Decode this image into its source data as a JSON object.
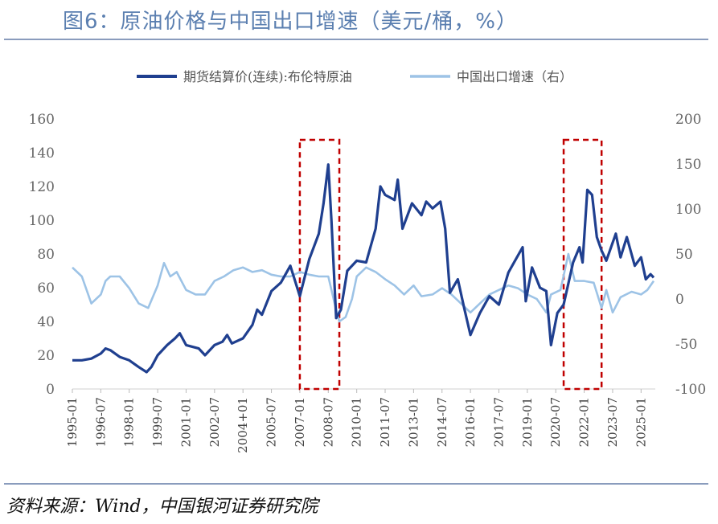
{
  "title": "图6：原油价格与中国出口增速（美元/桶，%）",
  "source": "资料来源：Wind，中国银河证券研究院",
  "chart_data": {
    "type": "line",
    "legend": [
      "期货结算价(连续):布伦特原油",
      "中国出口增速（右）"
    ],
    "legend_placement": "top",
    "x_tick_labels": [
      "1995-01",
      "1996-07",
      "1998-01",
      "1999-07",
      "2001-01",
      "2002-07",
      "2004+01",
      "2005-07",
      "2007-01",
      "2008-07",
      "2010-01",
      "2011-07",
      "2013-01",
      "2014-07",
      "2016-01",
      "2017-07",
      "2019-01",
      "2020-07",
      "2022-01",
      "2023-07",
      "2025-01"
    ],
    "y_left": {
      "ticks": [
        0,
        20,
        40,
        60,
        80,
        100,
        120,
        140,
        160
      ],
      "lim": [
        0,
        160
      ]
    },
    "y_right": {
      "ticks": [
        -100,
        -50,
        0,
        50,
        100,
        150,
        200
      ],
      "lim": [
        -100,
        200
      ]
    },
    "grid": false,
    "series": [
      {
        "name": "期货结算价(连续):布伦特原油",
        "axis": "left",
        "color": "#1f3f8f",
        "points": [
          [
            "1995-01",
            17
          ],
          [
            "1995-07",
            17
          ],
          [
            "1996-01",
            18
          ],
          [
            "1996-07",
            21
          ],
          [
            "1996-10",
            24
          ],
          [
            "1997-01",
            23
          ],
          [
            "1997-07",
            19
          ],
          [
            "1998-01",
            17
          ],
          [
            "1998-07",
            13
          ],
          [
            "1998-12",
            10
          ],
          [
            "1999-03",
            13
          ],
          [
            "1999-07",
            20
          ],
          [
            "2000-01",
            26
          ],
          [
            "2000-06",
            30
          ],
          [
            "2000-09",
            33
          ],
          [
            "2001-01",
            26
          ],
          [
            "2001-09",
            24
          ],
          [
            "2002-01",
            20
          ],
          [
            "2002-07",
            26
          ],
          [
            "2002-12",
            28
          ],
          [
            "2003-03",
            32
          ],
          [
            "2003-06",
            27
          ],
          [
            "2004-01",
            30
          ],
          [
            "2004-07",
            38
          ],
          [
            "2004-10",
            47
          ],
          [
            "2005-01",
            44
          ],
          [
            "2005-07",
            58
          ],
          [
            "2006-01",
            63
          ],
          [
            "2006-07",
            73
          ],
          [
            "2007-01",
            55
          ],
          [
            "2007-07",
            77
          ],
          [
            "2008-01",
            92
          ],
          [
            "2008-04",
            110
          ],
          [
            "2008-07",
            133
          ],
          [
            "2008-09",
            100
          ],
          [
            "2008-12",
            42
          ],
          [
            "2009-03",
            47
          ],
          [
            "2009-07",
            70
          ],
          [
            "2010-01",
            76
          ],
          [
            "2010-07",
            75
          ],
          [
            "2011-01",
            95
          ],
          [
            "2011-04",
            120
          ],
          [
            "2011-07",
            115
          ],
          [
            "2012-01",
            112
          ],
          [
            "2012-03",
            124
          ],
          [
            "2012-06",
            95
          ],
          [
            "2012-12",
            110
          ],
          [
            "2013-06",
            103
          ],
          [
            "2013-09",
            111
          ],
          [
            "2014-01",
            107
          ],
          [
            "2014-06",
            111
          ],
          [
            "2014-09",
            95
          ],
          [
            "2014-12",
            57
          ],
          [
            "2015-05",
            65
          ],
          [
            "2015-09",
            48
          ],
          [
            "2016-01",
            32
          ],
          [
            "2016-07",
            45
          ],
          [
            "2017-01",
            55
          ],
          [
            "2017-07",
            50
          ],
          [
            "2018-01",
            69
          ],
          [
            "2018-10",
            84
          ],
          [
            "2018-12",
            52
          ],
          [
            "2019-04",
            72
          ],
          [
            "2019-09",
            60
          ],
          [
            "2020-01",
            58
          ],
          [
            "2020-04",
            26
          ],
          [
            "2020-08",
            45
          ],
          [
            "2020-12",
            50
          ],
          [
            "2021-06",
            75
          ],
          [
            "2021-10",
            84
          ],
          [
            "2021-12",
            75
          ],
          [
            "2022-03",
            118
          ],
          [
            "2022-06",
            115
          ],
          [
            "2022-09",
            90
          ],
          [
            "2022-12",
            82
          ],
          [
            "2023-03",
            76
          ],
          [
            "2023-09",
            92
          ],
          [
            "2023-12",
            78
          ],
          [
            "2024-04",
            90
          ],
          [
            "2024-09",
            73
          ],
          [
            "2025-01",
            78
          ],
          [
            "2025-04",
            65
          ],
          [
            "2025-07",
            68
          ],
          [
            "2025-09",
            66
          ]
        ]
      },
      {
        "name": "中国出口增速（右）",
        "axis": "right",
        "color": "#9dc3e6",
        "points": [
          [
            "1995-01",
            35
          ],
          [
            "1995-07",
            25
          ],
          [
            "1996-01",
            -5
          ],
          [
            "1996-07",
            5
          ],
          [
            "1996-10",
            20
          ],
          [
            "1997-01",
            25
          ],
          [
            "1997-07",
            25
          ],
          [
            "1998-01",
            12
          ],
          [
            "1998-07",
            -5
          ],
          [
            "1999-01",
            -10
          ],
          [
            "1999-07",
            15
          ],
          [
            "1999-11",
            40
          ],
          [
            "2000-03",
            25
          ],
          [
            "2000-07",
            30
          ],
          [
            "2001-01",
            10
          ],
          [
            "2001-07",
            5
          ],
          [
            "2002-01",
            5
          ],
          [
            "2002-07",
            20
          ],
          [
            "2003-01",
            25
          ],
          [
            "2003-07",
            32
          ],
          [
            "2004-01",
            35
          ],
          [
            "2004-07",
            30
          ],
          [
            "2005-01",
            32
          ],
          [
            "2005-07",
            27
          ],
          [
            "2006-01",
            25
          ],
          [
            "2006-07",
            25
          ],
          [
            "2007-01",
            30
          ],
          [
            "2007-07",
            27
          ],
          [
            "2008-01",
            25
          ],
          [
            "2008-07",
            25
          ],
          [
            "2008-11",
            -5
          ],
          [
            "2009-02",
            -25
          ],
          [
            "2009-06",
            -20
          ],
          [
            "2009-10",
            0
          ],
          [
            "2010-01",
            25
          ],
          [
            "2010-07",
            35
          ],
          [
            "2011-01",
            30
          ],
          [
            "2011-07",
            22
          ],
          [
            "2012-01",
            15
          ],
          [
            "2012-07",
            5
          ],
          [
            "2013-01",
            15
          ],
          [
            "2013-06",
            3
          ],
          [
            "2014-01",
            5
          ],
          [
            "2014-07",
            12
          ],
          [
            "2015-01",
            5
          ],
          [
            "2015-07",
            -5
          ],
          [
            "2016-01",
            -15
          ],
          [
            "2016-07",
            -5
          ],
          [
            "2017-01",
            5
          ],
          [
            "2017-07",
            10
          ],
          [
            "2018-01",
            15
          ],
          [
            "2018-07",
            12
          ],
          [
            "2019-01",
            5
          ],
          [
            "2019-07",
            0
          ],
          [
            "2020-01",
            -15
          ],
          [
            "2020-04",
            5
          ],
          [
            "2020-10",
            10
          ],
          [
            "2021-03",
            50
          ],
          [
            "2021-07",
            20
          ],
          [
            "2022-01",
            20
          ],
          [
            "2022-07",
            18
          ],
          [
            "2022-12",
            -10
          ],
          [
            "2023-03",
            10
          ],
          [
            "2023-07",
            -15
          ],
          [
            "2023-12",
            2
          ],
          [
            "2024-07",
            8
          ],
          [
            "2025-01",
            5
          ],
          [
            "2025-05",
            10
          ],
          [
            "2025-09",
            20
          ]
        ]
      }
    ]
  },
  "highlights": [
    {
      "from": "2007-01",
      "to": "2009-02"
    },
    {
      "from": "2020-12",
      "to": "2022-12"
    }
  ]
}
